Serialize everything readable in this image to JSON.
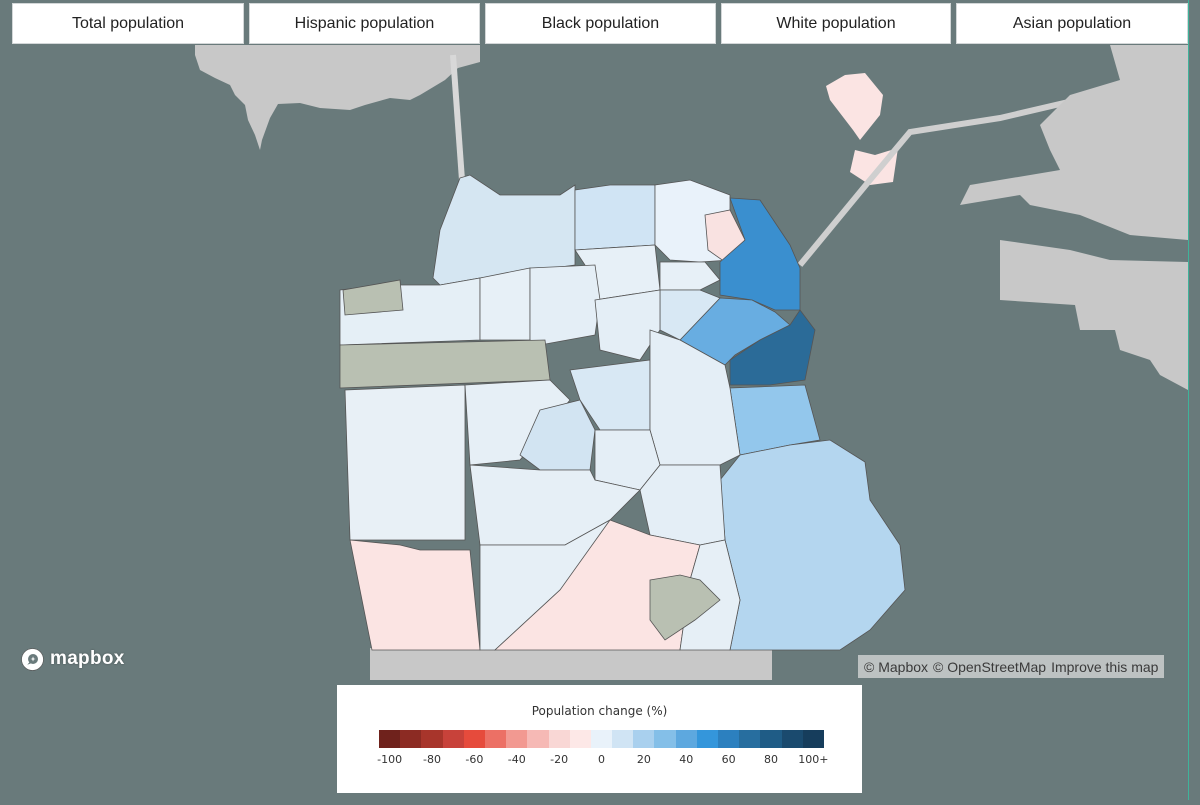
{
  "layer_buttons": [
    {
      "label": "Total population"
    },
    {
      "label": "Hispanic population"
    },
    {
      "label": "Black population"
    },
    {
      "label": "White population"
    },
    {
      "label": "Asian population"
    }
  ],
  "map": {
    "region": "San Francisco",
    "water_color": "#697a7b",
    "land_color": "#c8c8c8",
    "park_color": "#b9c0b2"
  },
  "logo": {
    "label": "mapbox",
    "icon": "mapbox-logo-icon"
  },
  "attribution": {
    "mapbox": "© Mapbox",
    "osm": "© OpenStreetMap",
    "improve": "Improve this map"
  },
  "legend": {
    "title": "Population change (%)",
    "colors": [
      "#6f221c",
      "#8c2b23",
      "#a8352b",
      "#c8423a",
      "#e64b3c",
      "#ec7065",
      "#f29991",
      "#f6b9b5",
      "#f9d7d5",
      "#fde8e7",
      "#e9f2fa",
      "#d0e4f4",
      "#a9d0ee",
      "#84bfe8",
      "#5da8df",
      "#3496db",
      "#2c80bf",
      "#276e9f",
      "#1f5c86",
      "#1a4a6e",
      "#163d5c"
    ],
    "ticks": [
      "-100",
      "-80",
      "-60",
      "-40",
      "-20",
      "0",
      "20",
      "40",
      "60",
      "80",
      "100+"
    ]
  }
}
